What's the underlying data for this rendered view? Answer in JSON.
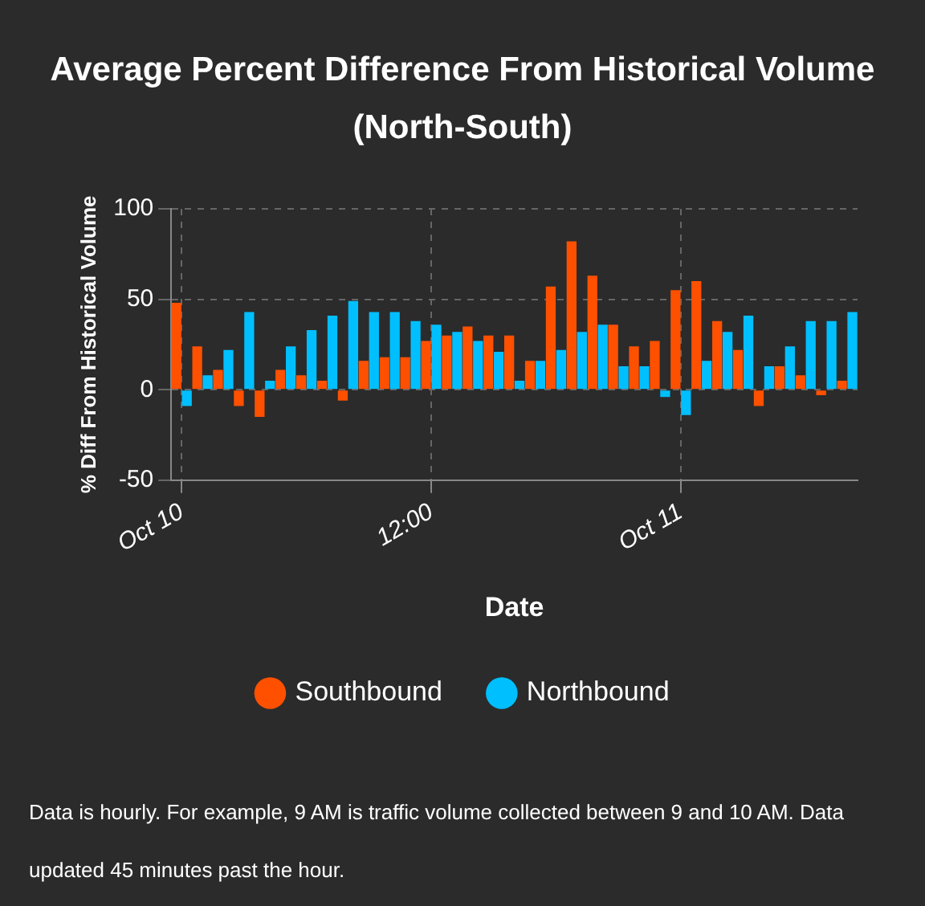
{
  "chart_data": {
    "type": "bar",
    "title": "Average Percent Difference From Historical Volume (North-South)",
    "xlabel": "Date",
    "ylabel": "% Diff From Historical Volume",
    "categories": [
      "Oct 10",
      null,
      null,
      null,
      null,
      null,
      null,
      null,
      null,
      null,
      null,
      null,
      "12:00",
      null,
      null,
      null,
      null,
      null,
      null,
      null,
      null,
      null,
      null,
      null,
      "Oct 11",
      null,
      null,
      null,
      null,
      null,
      null,
      null,
      null
    ],
    "ylim": [
      -50,
      100
    ],
    "yticks": [
      -50,
      0,
      50,
      100
    ],
    "grid": true,
    "legend": "bottom",
    "series": [
      {
        "name": "Southbound",
        "color": "#ff5000",
        "values": [
          48,
          24,
          11,
          -9,
          -15,
          11,
          8,
          5,
          -6,
          16,
          18,
          18,
          27,
          30,
          35,
          30,
          30,
          16,
          57,
          82,
          63,
          36,
          24,
          27,
          55,
          60,
          38,
          22,
          -9,
          13,
          8,
          -3,
          5
        ]
      },
      {
        "name": "Northbound",
        "color": "#00bfff",
        "values": [
          -9,
          8,
          22,
          43,
          5,
          24,
          33,
          41,
          49,
          43,
          43,
          38,
          36,
          32,
          27,
          21,
          5,
          16,
          22,
          32,
          36,
          13,
          13,
          -4,
          -14,
          16,
          32,
          41,
          13,
          24,
          38,
          38,
          43
        ]
      }
    ],
    "annotations": [
      "Data is hourly.  For example, 9 AM is traffic volume collected between 9 and 10 AM. Data updated 45 minutes past the hour."
    ]
  }
}
